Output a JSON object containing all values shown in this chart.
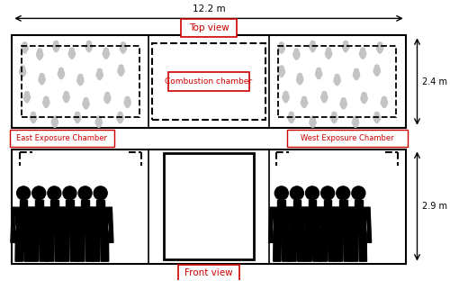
{
  "fig_width": 5.0,
  "fig_height": 3.12,
  "bg_color": "#ffffff",
  "title_12_2": "12.2 m",
  "label_2_4": "2.4 m",
  "label_2_9": "2.9 m",
  "top_view_label": "Top view",
  "front_view_label": "Front view",
  "combustion_label": "Combustion chamber",
  "east_label": "East Exposure Chamber",
  "west_label": "West Exposure Chamber",
  "label_color": "#cc0000",
  "smoke_color": "#c8c8c8"
}
